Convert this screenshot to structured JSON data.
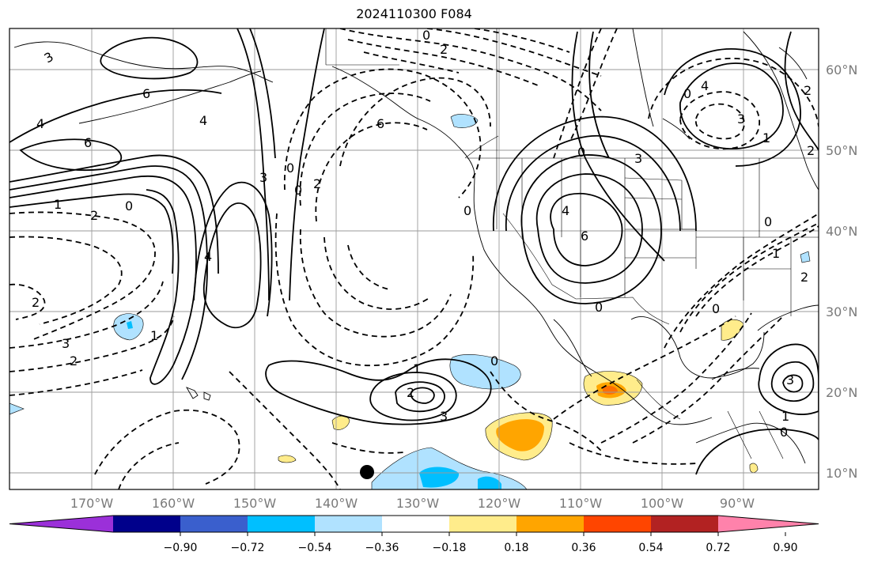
{
  "title": "2024110300 F084",
  "map": {
    "lon_labels": [
      "170°W",
      "160°W",
      "150°W",
      "140°W",
      "130°W",
      "120°W",
      "110°W",
      "100°W",
      "90°W"
    ],
    "lat_labels": [
      "60°N",
      "50°N",
      "40°N",
      "30°N",
      "20°N",
      "10°N"
    ],
    "contour_labels": [
      "0",
      "2",
      "3",
      "6",
      "4",
      "6",
      "4",
      "1",
      "2",
      "0",
      "3",
      "0",
      "2",
      "0",
      "1",
      "4",
      "6",
      "0",
      "3",
      "0",
      "4",
      "3",
      "2",
      "1",
      "2",
      "0",
      "1",
      "2",
      "0",
      "4",
      "6",
      "0",
      "1",
      "2",
      "3",
      "0",
      "3",
      "2",
      "1",
      "0",
      "3",
      "0",
      "2"
    ]
  },
  "colorbar": {
    "colors": [
      "#9b30d9",
      "#00008b",
      "#3a5fcd",
      "#00bfff",
      "#b0e2ff",
      "#ffffff",
      "#ffec8b",
      "#ffa500",
      "#ff4500",
      "#b22222",
      "#ff82ab"
    ],
    "tick_labels": [
      "−0.90",
      "−0.72",
      "−0.54",
      "−0.36",
      "−0.18",
      "0.18",
      "0.36",
      "0.54",
      "0.72",
      "0.90"
    ]
  },
  "fill_colors": {
    "light_blue": "#b0e2ff",
    "deep_sky_blue": "#00bfff",
    "light_yellow": "#ffec8b",
    "orange": "#ffa500",
    "orange_red": "#ff4500"
  }
}
